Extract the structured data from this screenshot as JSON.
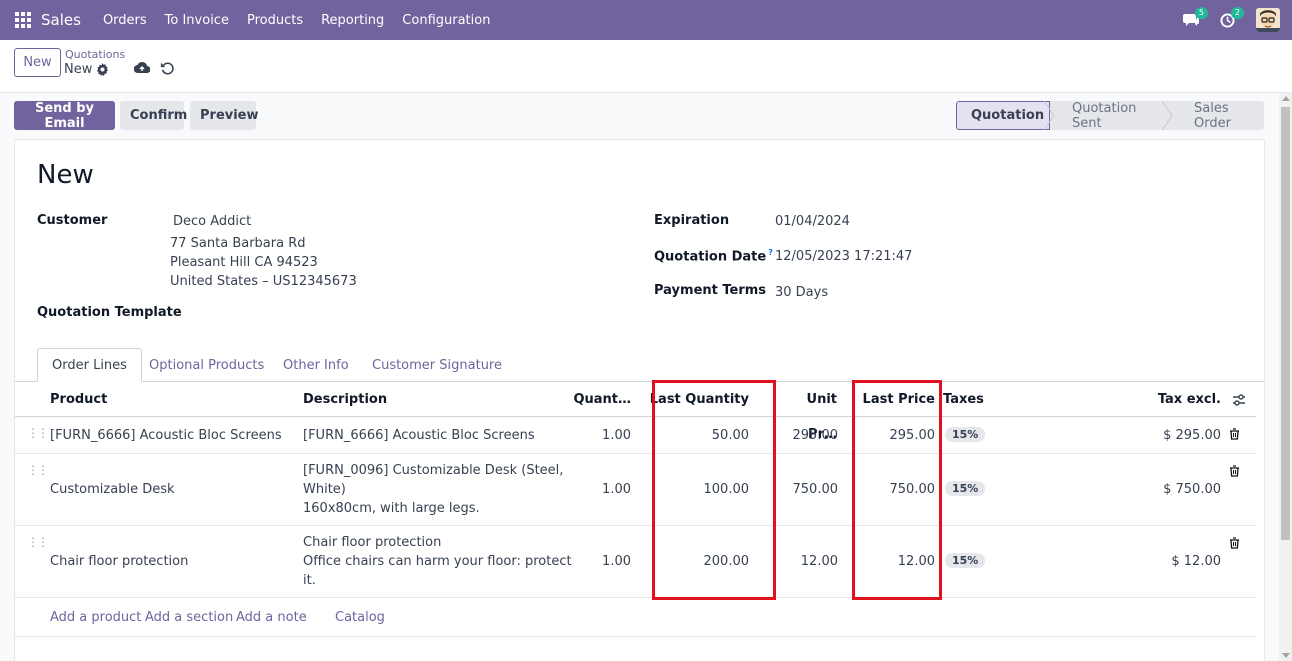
{
  "navbar": {
    "brand": "Sales",
    "menu": [
      "Orders",
      "To Invoice",
      "Products",
      "Reporting",
      "Configuration"
    ],
    "messages_count": "5",
    "activities_count": "2"
  },
  "breadcrumb": {
    "parent": "Quotations",
    "current": "New"
  },
  "control": {
    "new_label": "New"
  },
  "actions": {
    "send_email": "Send by Email",
    "confirm": "Confirm",
    "preview": "Preview"
  },
  "stages": [
    "Quotation",
    "Quotation Sent",
    "Sales Order"
  ],
  "form": {
    "title": "New",
    "customer_label": "Customer",
    "customer_name": "Deco Addict",
    "address_line1": "77 Santa Barbara Rd",
    "address_line2": "Pleasant Hill CA 94523",
    "address_line3": "United States – US12345673",
    "template_label": "Quotation Template",
    "expiration_label": "Expiration",
    "expiration_value": "01/04/2024",
    "quotation_date_label": "Quotation Date",
    "quotation_date_help": "?",
    "quotation_date_value": "12/05/2023 17:21:47",
    "payment_terms_label": "Payment Terms",
    "payment_terms_value": "30 Days"
  },
  "tabs": [
    "Order Lines",
    "Optional Products",
    "Other Info",
    "Customer Signature"
  ],
  "table": {
    "headers": {
      "product": "Product",
      "description": "Description",
      "quantity": "Quant…",
      "last_quantity": "Last Quantity",
      "unit_price": "Unit Pr…",
      "last_price": "Last Price",
      "taxes": "Taxes",
      "tax_excl": "Tax excl."
    },
    "rows": [
      {
        "product": "[FURN_6666] Acoustic Bloc Screens",
        "desc1": "[FURN_6666] Acoustic Bloc Screens",
        "desc2": "",
        "desc3": "",
        "quantity": "1.00",
        "last_quantity": "50.00",
        "unit_price": "295.00",
        "last_price": "295.00",
        "tax": "15%",
        "subtotal": "$ 295.00"
      },
      {
        "product": "Customizable Desk",
        "desc1": "[FURN_0096] Customizable Desk (Steel,",
        "desc2": "White)",
        "desc3": "160x80cm, with large legs.",
        "quantity": "1.00",
        "last_quantity": "100.00",
        "unit_price": "750.00",
        "last_price": "750.00",
        "tax": "15%",
        "subtotal": "$ 750.00"
      },
      {
        "product": "Chair floor protection",
        "desc1": "Chair floor protection",
        "desc2": "Office chairs can harm your floor: protect",
        "desc3": "it.",
        "quantity": "1.00",
        "last_quantity": "200.00",
        "unit_price": "12.00",
        "last_price": "12.00",
        "tax": "15%",
        "subtotal": "$ 12.00"
      }
    ],
    "add_links": [
      "Add a product",
      "Add a section",
      "Add a note",
      "Catalog"
    ]
  },
  "colors": {
    "brand": "#71639e",
    "highlight": "#e0101f"
  }
}
